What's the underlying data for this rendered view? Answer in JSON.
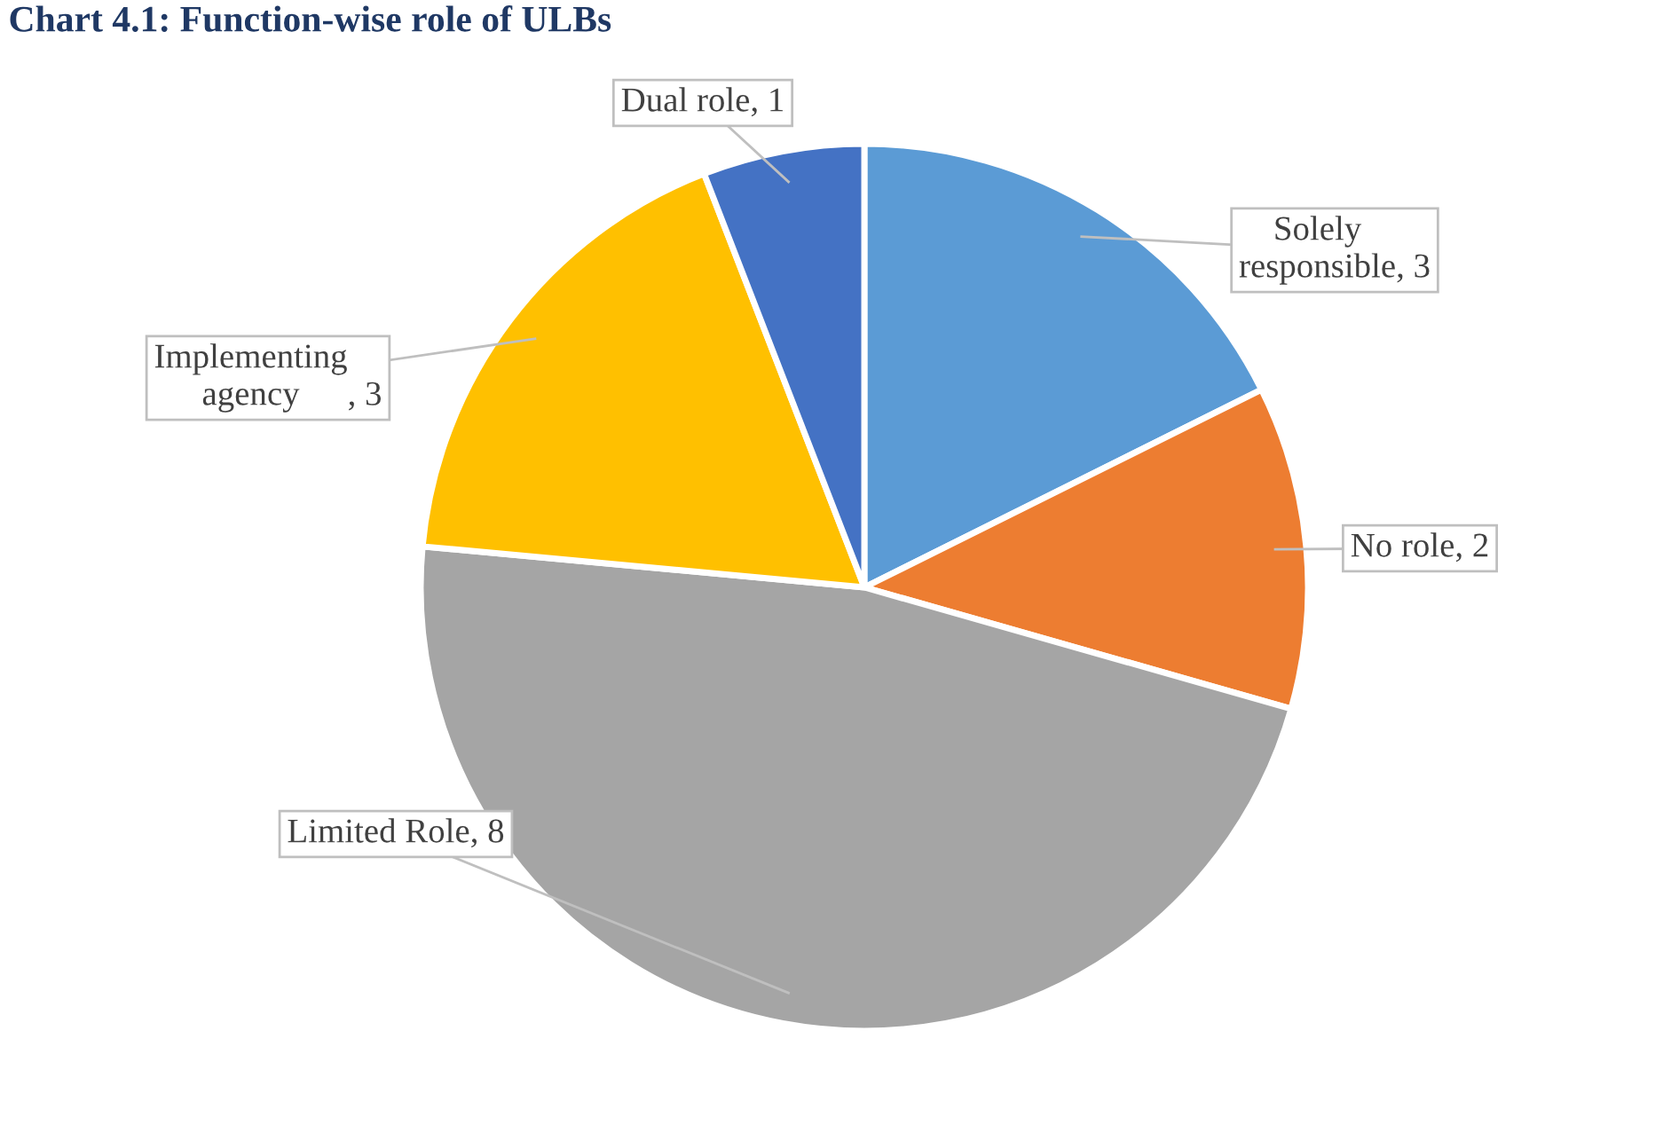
{
  "chart_data": {
    "type": "pie",
    "title": "Chart 4.1: Function-wise role of ULBs",
    "categories": [
      "Solely responsible",
      "No role",
      "Limited Role",
      "Implementing agency",
      "Dual role"
    ],
    "values": [
      3,
      2,
      8,
      3,
      1
    ],
    "colors": [
      "#5b9bd5",
      "#ed7d31",
      "#a5a5a5",
      "#ffc000",
      "#4472c4"
    ],
    "value_labels": [
      ", 3",
      ", 2",
      ", 8",
      ", 3",
      ", 1"
    ],
    "legend": false
  }
}
